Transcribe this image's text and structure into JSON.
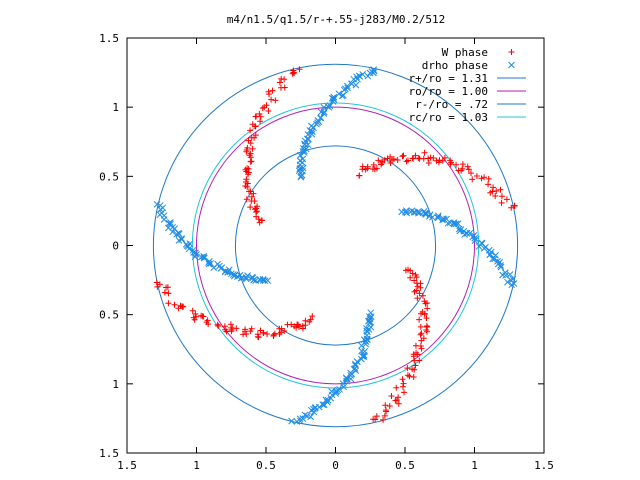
{
  "chart_data": {
    "type": "scatter",
    "title": "m4/n1.5/q1.5/r-+.55-j283/M0.2/512",
    "xlabel": "",
    "ylabel": "",
    "xlim": [
      -1.5,
      1.5
    ],
    "ylim": [
      -1.5,
      1.5
    ],
    "aspect": "equal",
    "grid": false,
    "legend_position": "top-right",
    "xticks": [
      {
        "value": -1.5,
        "label": "1.5"
      },
      {
        "value": -1.0,
        "label": "1"
      },
      {
        "value": -0.5,
        "label": "0.5"
      },
      {
        "value": 0,
        "label": "0"
      },
      {
        "value": 0.5,
        "label": "0.5"
      },
      {
        "value": 1.0,
        "label": "1"
      },
      {
        "value": 1.5,
        "label": "1.5"
      }
    ],
    "yticks": [
      {
        "value": 1.5,
        "label": "1.5"
      },
      {
        "value": 1.0,
        "label": "1"
      },
      {
        "value": 0.5,
        "label": "0.5"
      },
      {
        "value": 0,
        "label": "0"
      },
      {
        "value": -0.5,
        "label": "0.5"
      },
      {
        "value": -1.0,
        "label": "1"
      },
      {
        "value": -1.5,
        "label": "1.5"
      }
    ],
    "series": [
      {
        "name": "W phase",
        "kind": "points",
        "marker": "plus",
        "color": "#ff0000",
        "arms": [
          {
            "r0": 0.55,
            "r1": 1.31,
            "theta0_deg": 162,
            "theta1_deg": 102,
            "spread": 0.035
          },
          {
            "r0": 0.55,
            "r1": 1.31,
            "theta0_deg": 72,
            "theta1_deg": 12,
            "spread": 0.035
          },
          {
            "r0": 0.55,
            "r1": 1.31,
            "theta0_deg": -18,
            "theta1_deg": -78,
            "spread": 0.035
          },
          {
            "r0": 0.55,
            "r1": 1.31,
            "theta0_deg": -108,
            "theta1_deg": -168,
            "spread": 0.035
          }
        ]
      },
      {
        "name": "drho phase",
        "kind": "points",
        "marker": "x",
        "color": "#1e8ce6",
        "arms": [
          {
            "r0": 0.55,
            "r1": 1.31,
            "theta0_deg": 117,
            "theta1_deg": 77,
            "spread": 0.02
          },
          {
            "r0": 0.55,
            "r1": 1.31,
            "theta0_deg": 27,
            "theta1_deg": -13,
            "spread": 0.02
          },
          {
            "r0": 0.55,
            "r1": 1.31,
            "theta0_deg": -63,
            "theta1_deg": -103,
            "spread": 0.02
          },
          {
            "r0": 0.55,
            "r1": 1.31,
            "theta0_deg": -153,
            "theta1_deg": -193,
            "spread": 0.02
          }
        ]
      },
      {
        "name": "r+/ro = 1.31",
        "kind": "circle",
        "radius": 1.31,
        "color": "#1e78c8"
      },
      {
        "name": "ro/ro = 1.00",
        "kind": "circle",
        "radius": 1.0,
        "color": "#b41eb4"
      },
      {
        "name": "r-/ro = .72",
        "kind": "circle",
        "radius": 0.72,
        "color": "#1e78c8"
      },
      {
        "name": "rc/ro = 1.03",
        "kind": "circle",
        "radius": 1.03,
        "color": "#1ec8d2"
      }
    ]
  }
}
